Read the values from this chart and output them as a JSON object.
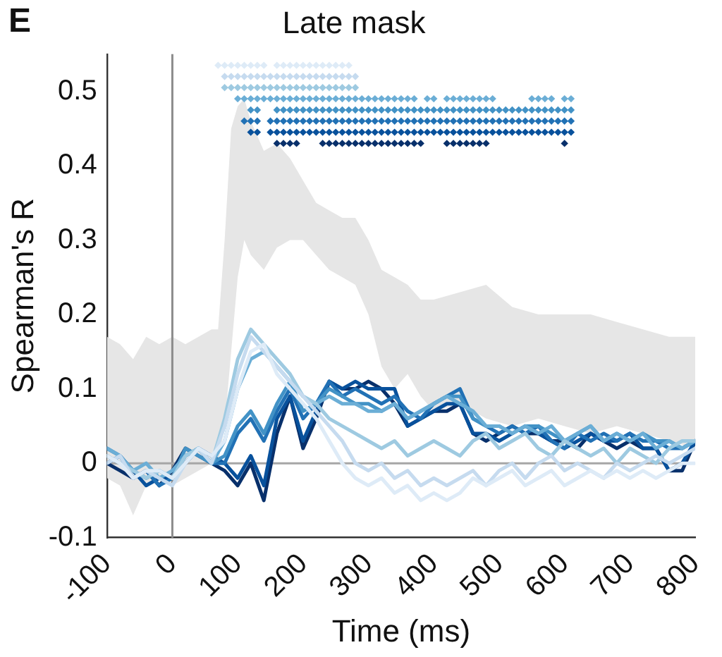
{
  "chart_data": {
    "type": "line",
    "title": "Late mask",
    "xlabel": "Time (ms)",
    "ylabel": "Spearman's R",
    "annotations": [
      "E"
    ],
    "x": [
      -100,
      -80,
      -60,
      -40,
      -20,
      0,
      20,
      40,
      60,
      80,
      100,
      120,
      140,
      160,
      180,
      200,
      220,
      240,
      260,
      280,
      300,
      320,
      340,
      360,
      380,
      400,
      420,
      440,
      460,
      480,
      500,
      520,
      540,
      560,
      580,
      600,
      620,
      640,
      660,
      680,
      700,
      720,
      740,
      760,
      780,
      800
    ],
    "xlim": [
      -100,
      800
    ],
    "xticks": [
      -100,
      0,
      100,
      200,
      300,
      400,
      500,
      600,
      700,
      800
    ],
    "ylim": [
      -0.1,
      0.55
    ],
    "yticks": [
      -0.1,
      0,
      0.1,
      0.2,
      0.3,
      0.4,
      0.5
    ],
    "grid": false,
    "legend": false,
    "ref_lines": [
      {
        "axis": "x",
        "value": 0,
        "color": "#8c8c8c"
      },
      {
        "axis": "y",
        "value": 0,
        "color": "#a6a6a6"
      }
    ],
    "series": [
      {
        "type": "area",
        "color": "#e6e6e6",
        "x": [
          -100,
          -80,
          -60,
          -40,
          -20,
          0,
          20,
          40,
          60,
          70,
          80,
          90,
          100,
          110,
          120,
          140,
          160,
          180,
          200,
          220,
          240,
          260,
          280,
          300,
          320,
          340,
          360,
          380,
          400,
          440,
          480,
          520,
          560,
          600,
          640,
          680,
          720,
          760,
          800
        ],
        "values": [
          null,
          null,
          null,
          null,
          null,
          null,
          null,
          null,
          null,
          null,
          null,
          null,
          null,
          null,
          null,
          null,
          null,
          null,
          null,
          null,
          null,
          null,
          null,
          null,
          null,
          null,
          null,
          null,
          null,
          null,
          null,
          null,
          null,
          null,
          null,
          null,
          null,
          null,
          null
        ],
        "upper": [
          0.17,
          0.16,
          0.14,
          0.17,
          0.16,
          0.17,
          0.16,
          0.17,
          0.18,
          0.18,
          0.3,
          0.45,
          0.48,
          0.49,
          0.46,
          0.42,
          0.43,
          0.41,
          0.38,
          0.35,
          0.34,
          0.33,
          0.33,
          0.3,
          0.26,
          0.25,
          0.24,
          0.22,
          0.22,
          0.23,
          0.24,
          0.21,
          0.2,
          0.2,
          0.2,
          0.19,
          0.18,
          0.17,
          0.17
        ],
        "lower": [
          -0.02,
          -0.03,
          -0.07,
          -0.03,
          -0.02,
          -0.03,
          -0.02,
          -0.01,
          0.0,
          0.0,
          0.05,
          0.15,
          0.25,
          0.3,
          0.28,
          0.26,
          0.29,
          0.3,
          0.3,
          0.28,
          0.26,
          0.25,
          0.24,
          0.2,
          0.13,
          0.1,
          0.12,
          0.09,
          0.07,
          0.08,
          0.06,
          0.05,
          0.06,
          0.05,
          0.04,
          0.05,
          0.04,
          0.03,
          0.02
        ]
      },
      {
        "color": "#deebf7",
        "values": [
          0.01,
          0.0,
          -0.02,
          -0.01,
          -0.01,
          -0.02,
          0.0,
          0.02,
          0.01,
          0.03,
          0.1,
          0.15,
          0.16,
          0.12,
          0.1,
          0.08,
          0.06,
          0.03,
          0.0,
          -0.02,
          -0.03,
          -0.02,
          -0.04,
          -0.03,
          -0.05,
          -0.04,
          -0.05,
          -0.04,
          -0.02,
          -0.03,
          -0.02,
          -0.01,
          -0.03,
          -0.02,
          -0.01,
          -0.03,
          -0.02,
          -0.01,
          -0.02,
          -0.01,
          -0.02,
          -0.01,
          -0.02,
          -0.01,
          0.0,
          0.0
        ]
      },
      {
        "color": "#c6dbef",
        "values": [
          0.0,
          0.01,
          -0.02,
          -0.01,
          -0.02,
          -0.03,
          0.0,
          0.02,
          0.0,
          0.05,
          0.12,
          0.17,
          0.15,
          0.13,
          0.11,
          0.09,
          0.07,
          0.05,
          0.03,
          0.0,
          -0.01,
          0.0,
          -0.02,
          -0.01,
          -0.03,
          -0.02,
          -0.03,
          -0.02,
          -0.01,
          -0.03,
          -0.01,
          0.0,
          -0.02,
          0.0,
          0.01,
          -0.01,
          0.0,
          -0.01,
          -0.02,
          0.0,
          -0.01,
          0.0,
          0.01,
          0.0,
          0.01,
          0.02
        ]
      },
      {
        "color": "#9ecae1",
        "values": [
          0.01,
          0.0,
          -0.01,
          -0.02,
          -0.01,
          -0.02,
          0.01,
          0.02,
          0.0,
          0.06,
          0.14,
          0.18,
          0.16,
          0.14,
          0.12,
          0.09,
          0.08,
          0.06,
          0.05,
          0.04,
          0.03,
          0.02,
          0.03,
          0.01,
          0.02,
          0.03,
          0.02,
          0.01,
          0.03,
          0.04,
          0.02,
          0.03,
          0.04,
          0.02,
          0.01,
          0.03,
          0.02,
          0.01,
          0.02,
          0.0,
          0.02,
          0.01,
          0.0,
          0.02,
          0.03,
          0.03
        ]
      },
      {
        "color": "#6baed6",
        "values": [
          0.02,
          0.01,
          -0.01,
          0.0,
          -0.02,
          -0.01,
          0.01,
          0.02,
          0.0,
          0.03,
          0.1,
          0.14,
          0.15,
          0.13,
          0.11,
          0.09,
          0.08,
          0.09,
          0.08,
          0.08,
          0.07,
          0.07,
          0.08,
          0.06,
          0.07,
          0.08,
          0.09,
          0.08,
          0.07,
          0.05,
          0.05,
          0.04,
          0.05,
          0.04,
          0.05,
          0.03,
          0.04,
          0.05,
          0.03,
          0.04,
          0.03,
          0.04,
          0.02,
          0.03,
          0.02,
          0.03
        ]
      },
      {
        "color": "#4292c6",
        "values": [
          0.01,
          0.0,
          -0.01,
          -0.02,
          -0.01,
          -0.02,
          0.02,
          0.01,
          0.0,
          0.01,
          0.05,
          0.07,
          0.04,
          0.08,
          0.11,
          0.07,
          0.08,
          0.1,
          0.09,
          0.08,
          0.08,
          0.07,
          0.08,
          0.06,
          0.07,
          0.08,
          0.09,
          0.09,
          0.06,
          0.05,
          0.05,
          0.04,
          0.05,
          0.05,
          0.04,
          0.03,
          0.04,
          0.05,
          0.03,
          0.04,
          0.03,
          0.04,
          0.03,
          0.03,
          0.02,
          0.03
        ]
      },
      {
        "color": "#2171b5",
        "values": [
          0.02,
          0.01,
          -0.02,
          -0.01,
          -0.03,
          -0.02,
          0.01,
          0.02,
          0.0,
          0.0,
          0.04,
          0.06,
          0.03,
          0.07,
          0.1,
          0.06,
          0.08,
          0.11,
          0.09,
          0.1,
          0.09,
          0.08,
          0.09,
          0.07,
          0.06,
          0.08,
          0.09,
          0.1,
          0.06,
          0.05,
          0.04,
          0.05,
          0.04,
          0.05,
          0.03,
          0.02,
          0.04,
          0.03,
          0.04,
          0.03,
          0.04,
          0.03,
          0.03,
          0.02,
          0.02,
          0.03
        ]
      },
      {
        "color": "#08519c",
        "values": [
          0.0,
          0.01,
          -0.01,
          -0.03,
          -0.02,
          -0.02,
          0.0,
          0.02,
          0.01,
          0.0,
          -0.02,
          0.01,
          -0.03,
          0.06,
          0.09,
          0.03,
          0.07,
          0.11,
          0.1,
          0.11,
          0.1,
          0.1,
          0.1,
          0.05,
          0.06,
          0.07,
          0.08,
          0.08,
          0.04,
          0.04,
          0.03,
          0.04,
          0.05,
          0.04,
          0.03,
          0.02,
          0.03,
          0.04,
          0.03,
          0.03,
          0.04,
          0.02,
          0.02,
          -0.01,
          0.0,
          0.03
        ]
      },
      {
        "color": "#08306b",
        "values": [
          0.0,
          -0.01,
          -0.02,
          -0.01,
          -0.03,
          -0.01,
          0.02,
          0.01,
          0.0,
          -0.01,
          -0.03,
          0.0,
          -0.05,
          0.04,
          0.09,
          0.02,
          0.06,
          0.11,
          0.1,
          0.1,
          0.11,
          0.1,
          0.08,
          0.05,
          0.06,
          0.07,
          0.07,
          0.08,
          0.04,
          0.03,
          0.04,
          0.05,
          0.04,
          0.04,
          0.03,
          0.03,
          0.02,
          0.04,
          0.03,
          0.02,
          0.03,
          0.02,
          0.02,
          -0.01,
          -0.01,
          0.03
        ]
      },
      {
        "type": "scatter",
        "marker": "diamond",
        "color": "#deebf7",
        "x": [
          70,
          80,
          90,
          100,
          110,
          120,
          130,
          140,
          160,
          170,
          180,
          190,
          200,
          210,
          220,
          230,
          240,
          250,
          260,
          270
        ],
        "values": [
          0.535,
          0.535,
          0.535,
          0.535,
          0.535,
          0.535,
          0.535,
          0.535,
          0.535,
          0.535,
          0.535,
          0.535,
          0.535,
          0.535,
          0.535,
          0.535,
          0.535,
          0.535,
          0.535,
          0.535
        ]
      },
      {
        "type": "scatter",
        "marker": "diamond",
        "color": "#c6dbef",
        "x": [
          80,
          90,
          100,
          110,
          120,
          130,
          140,
          150,
          160,
          170,
          180,
          190,
          200,
          210,
          220,
          230,
          240,
          250,
          260,
          270,
          280
        ],
        "values": [
          0.52,
          0.52,
          0.52,
          0.52,
          0.52,
          0.52,
          0.52,
          0.52,
          0.52,
          0.52,
          0.52,
          0.52,
          0.52,
          0.52,
          0.52,
          0.52,
          0.52,
          0.52,
          0.52,
          0.52,
          0.52
        ]
      },
      {
        "type": "scatter",
        "marker": "diamond",
        "color": "#9ecae1",
        "x": [
          80,
          90,
          100,
          110,
          120,
          130,
          140,
          150,
          160,
          170,
          180,
          190,
          200,
          210,
          220,
          230,
          240,
          250,
          260,
          270,
          280
        ],
        "values": [
          0.505,
          0.505,
          0.505,
          0.505,
          0.505,
          0.505,
          0.505,
          0.505,
          0.505,
          0.505,
          0.505,
          0.505,
          0.505,
          0.505,
          0.505,
          0.505,
          0.505,
          0.505,
          0.505,
          0.505,
          0.505
        ]
      },
      {
        "type": "scatter",
        "marker": "diamond",
        "color": "#6baed6",
        "x": [
          100,
          110,
          120,
          130,
          140,
          150,
          160,
          170,
          180,
          190,
          200,
          210,
          220,
          230,
          240,
          250,
          260,
          270,
          280,
          290,
          300,
          310,
          320,
          330,
          340,
          350,
          360,
          370,
          390,
          400,
          420,
          430,
          440,
          450,
          460,
          470,
          480,
          490,
          550,
          560,
          570,
          580,
          600,
          610
        ],
        "values": [
          0.49,
          0.49,
          0.49,
          0.49,
          0.49,
          0.49,
          0.49,
          0.49,
          0.49,
          0.49,
          0.49,
          0.49,
          0.49,
          0.49,
          0.49,
          0.49,
          0.49,
          0.49,
          0.49,
          0.49,
          0.49,
          0.49,
          0.49,
          0.49,
          0.49,
          0.49,
          0.49,
          0.49,
          0.49,
          0.49,
          0.49,
          0.49,
          0.49,
          0.49,
          0.49,
          0.49,
          0.49,
          0.49,
          0.49,
          0.49,
          0.49,
          0.49,
          0.49,
          0.49
        ]
      },
      {
        "type": "scatter",
        "marker": "diamond",
        "color": "#4292c6",
        "x": [
          120,
          130,
          160,
          170,
          180,
          190,
          200,
          210,
          220,
          230,
          240,
          250,
          260,
          270,
          280,
          290,
          300,
          310,
          320,
          330,
          340,
          350,
          360,
          370,
          380,
          390,
          400,
          410,
          420,
          430,
          440,
          450,
          460,
          470,
          480,
          490,
          500,
          510,
          520,
          530,
          540,
          550,
          560,
          570,
          580,
          590,
          600,
          610
        ],
        "values": [
          0.475,
          0.475,
          0.475,
          0.475,
          0.475,
          0.475,
          0.475,
          0.475,
          0.475,
          0.475,
          0.475,
          0.475,
          0.475,
          0.475,
          0.475,
          0.475,
          0.475,
          0.475,
          0.475,
          0.475,
          0.475,
          0.475,
          0.475,
          0.475,
          0.475,
          0.475,
          0.475,
          0.475,
          0.475,
          0.475,
          0.475,
          0.475,
          0.475,
          0.475,
          0.475,
          0.475,
          0.475,
          0.475,
          0.475,
          0.475,
          0.475,
          0.475,
          0.475,
          0.475,
          0.475,
          0.475,
          0.475,
          0.475
        ]
      },
      {
        "type": "scatter",
        "marker": "diamond",
        "color": "#2171b5",
        "x": [
          110,
          120,
          130,
          150,
          160,
          170,
          180,
          190,
          200,
          210,
          220,
          230,
          240,
          250,
          260,
          270,
          280,
          290,
          300,
          310,
          320,
          330,
          340,
          350,
          360,
          370,
          380,
          390,
          400,
          410,
          420,
          430,
          440,
          450,
          460,
          470,
          480,
          490,
          500,
          510,
          520,
          530,
          540,
          550,
          560,
          570,
          580,
          590,
          600,
          610
        ],
        "values": [
          0.46,
          0.46,
          0.46,
          0.46,
          0.46,
          0.46,
          0.46,
          0.46,
          0.46,
          0.46,
          0.46,
          0.46,
          0.46,
          0.46,
          0.46,
          0.46,
          0.46,
          0.46,
          0.46,
          0.46,
          0.46,
          0.46,
          0.46,
          0.46,
          0.46,
          0.46,
          0.46,
          0.46,
          0.46,
          0.46,
          0.46,
          0.46,
          0.46,
          0.46,
          0.46,
          0.46,
          0.46,
          0.46,
          0.46,
          0.46,
          0.46,
          0.46,
          0.46,
          0.46,
          0.46,
          0.46,
          0.46,
          0.46,
          0.46,
          0.46
        ]
      },
      {
        "type": "scatter",
        "marker": "diamond",
        "color": "#08519c",
        "x": [
          120,
          130,
          150,
          160,
          170,
          180,
          190,
          200,
          210,
          220,
          230,
          240,
          250,
          260,
          270,
          280,
          290,
          300,
          310,
          320,
          330,
          340,
          350,
          360,
          370,
          380,
          390,
          400,
          410,
          420,
          430,
          440,
          450,
          460,
          470,
          480,
          490,
          500,
          510,
          520,
          530,
          540,
          550,
          560,
          570,
          580,
          590,
          600,
          610
        ],
        "values": [
          0.445,
          0.445,
          0.445,
          0.445,
          0.445,
          0.445,
          0.445,
          0.445,
          0.445,
          0.445,
          0.445,
          0.445,
          0.445,
          0.445,
          0.445,
          0.445,
          0.445,
          0.445,
          0.445,
          0.445,
          0.445,
          0.445,
          0.445,
          0.445,
          0.445,
          0.445,
          0.445,
          0.445,
          0.445,
          0.445,
          0.445,
          0.445,
          0.445,
          0.445,
          0.445,
          0.445,
          0.445,
          0.445,
          0.445,
          0.445,
          0.445,
          0.445,
          0.445,
          0.445,
          0.445,
          0.445,
          0.445,
          0.445,
          0.445
        ]
      },
      {
        "type": "scatter",
        "marker": "diamond",
        "color": "#08306b",
        "x": [
          160,
          170,
          180,
          190,
          230,
          240,
          250,
          260,
          270,
          280,
          290,
          300,
          310,
          320,
          330,
          340,
          350,
          360,
          370,
          380,
          420,
          430,
          440,
          450,
          460,
          470,
          480,
          600
        ],
        "values": [
          0.43,
          0.43,
          0.43,
          0.43,
          0.43,
          0.43,
          0.43,
          0.43,
          0.43,
          0.43,
          0.43,
          0.43,
          0.43,
          0.43,
          0.43,
          0.43,
          0.43,
          0.43,
          0.43,
          0.43,
          0.43,
          0.43,
          0.43,
          0.43,
          0.43,
          0.43,
          0.43,
          0.43
        ]
      }
    ]
  }
}
